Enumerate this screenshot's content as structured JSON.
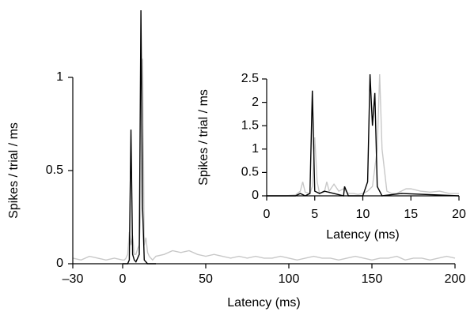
{
  "chart_data": [
    {
      "type": "line",
      "xlabel": "Latency (ms)",
      "ylabel": "Spikes / trial / ms",
      "xlim": [
        -30,
        200
      ],
      "ylim": [
        0,
        1.4
      ],
      "xticks": [
        {
          "value": -30,
          "label": "–30"
        },
        0,
        50,
        100,
        150,
        200
      ],
      "yticks": [
        0,
        0.5,
        1
      ],
      "series": [
        {
          "color": "#c8c8c8",
          "x": [
            -30,
            -25,
            -20,
            -15,
            -10,
            -5,
            0,
            1,
            2,
            3,
            4,
            5,
            6,
            7,
            8,
            9,
            10,
            11,
            12,
            13,
            14,
            15,
            16,
            17,
            18,
            19,
            20,
            25,
            30,
            35,
            40,
            45,
            50,
            55,
            60,
            65,
            70,
            75,
            80,
            85,
            90,
            95,
            100,
            105,
            110,
            115,
            120,
            125,
            130,
            135,
            140,
            145,
            150,
            155,
            160,
            165,
            170,
            175,
            180,
            185,
            190,
            195,
            200
          ],
          "values": [
            0.03,
            0.02,
            0.04,
            0.03,
            0.02,
            0.03,
            0.02,
            0.02,
            0.03,
            0.05,
            0.17,
            0.1,
            0.15,
            0.05,
            0.05,
            0.08,
            0.1,
            0.3,
            1.1,
            0.1,
            0.14,
            0.06,
            0.04,
            0.03,
            0.02,
            0.03,
            0.04,
            0.05,
            0.07,
            0.06,
            0.07,
            0.05,
            0.04,
            0.05,
            0.04,
            0.03,
            0.04,
            0.03,
            0.04,
            0.03,
            0.03,
            0.04,
            0.03,
            0.02,
            0.03,
            0.04,
            0.03,
            0.03,
            0.02,
            0.03,
            0.04,
            0.03,
            0.02,
            0.03,
            0.03,
            0.04,
            0.02,
            0.03,
            0.03,
            0.02,
            0.03,
            0.04,
            0.03
          ]
        },
        {
          "color": "#000000",
          "x": [
            0,
            1,
            2,
            3,
            4,
            5,
            6,
            7,
            8,
            9,
            10,
            11,
            12,
            13,
            14,
            15,
            16,
            17,
            18,
            19,
            20
          ],
          "values": [
            0,
            0,
            0,
            0,
            0.02,
            0.72,
            0.05,
            0.02,
            0.01,
            0.03,
            0.05,
            1.36,
            0.3,
            0.02,
            0.01,
            0,
            0,
            0,
            0,
            0,
            0
          ]
        }
      ]
    },
    {
      "type": "line",
      "xlabel": "Latency (ms)",
      "ylabel": "Spikes / trial / ms",
      "xlim": [
        0,
        20
      ],
      "ylim": [
        0,
        2.5
      ],
      "xticks": [
        0,
        5,
        10,
        15,
        20
      ],
      "yticks": [
        0,
        0.5,
        1,
        1.5,
        2,
        2.5
      ],
      "series": [
        {
          "color": "#c8c8c8",
          "x": [
            0,
            1,
            2,
            3,
            3.5,
            3.75,
            4,
            4.5,
            4.75,
            5,
            5.25,
            5.5,
            6,
            6.25,
            6.5,
            7,
            7.5,
            8,
            8.5,
            9,
            9.5,
            10,
            10.5,
            11,
            11.5,
            11.75,
            12,
            12.5,
            13,
            13.5,
            14,
            14.5,
            15,
            16,
            17,
            18,
            19,
            20
          ],
          "values": [
            0,
            0,
            0,
            0.02,
            0.1,
            0.3,
            0.08,
            0.05,
            0.2,
            1.25,
            0.3,
            0.05,
            0.08,
            0.3,
            0.1,
            0.25,
            0.1,
            0.15,
            0.05,
            0.05,
            0.03,
            0.05,
            0.1,
            0.2,
            1.0,
            2.6,
            1.0,
            0.1,
            0.05,
            0.05,
            0.1,
            0.15,
            0.15,
            0.1,
            0.08,
            0.1,
            0.05,
            0.05
          ]
        },
        {
          "color": "#000000",
          "x": [
            0,
            3,
            3.5,
            4,
            4.5,
            4.75,
            5,
            5.5,
            6,
            7,
            8,
            8.1,
            8.5,
            10,
            10.5,
            10.75,
            11,
            11.25,
            11.5,
            12,
            14,
            20
          ],
          "values": [
            0,
            0,
            0.05,
            0,
            0.05,
            2.25,
            0.1,
            0.05,
            0.1,
            0.05,
            0,
            0.2,
            0,
            0,
            0.3,
            2.6,
            1.5,
            2.2,
            0.2,
            0,
            0.05,
            0
          ]
        }
      ]
    }
  ]
}
